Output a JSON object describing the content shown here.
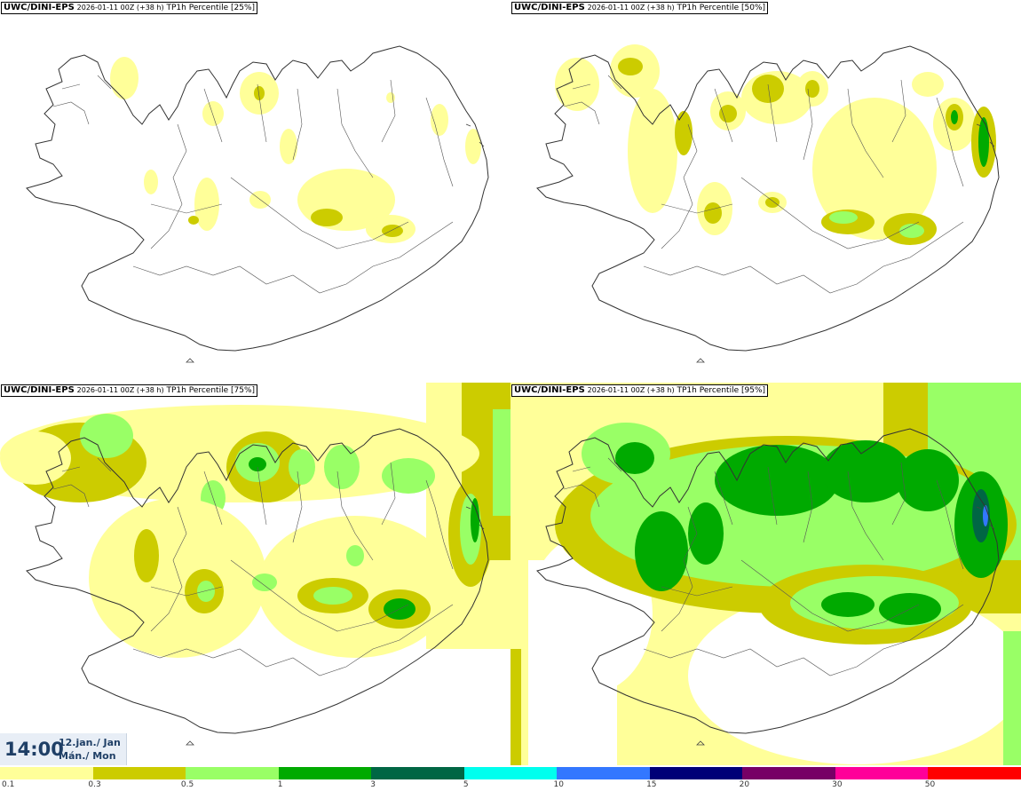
{
  "panels": [
    {
      "id": "p25",
      "source": "UWC/DINI-EPS",
      "run": "2026-01-11 00Z (+38 h)",
      "product": "TP1h Percentile [25%]"
    },
    {
      "id": "p50",
      "source": "UWC/DINI-EPS",
      "run": "2026-01-11 00Z (+38 h)",
      "product": "TP1h Percentile [50%]"
    },
    {
      "id": "p75",
      "source": "UWC/DINI-EPS",
      "run": "2026-01-11 00Z (+38 h)",
      "product": "TP1h Percentile [75%]"
    },
    {
      "id": "p95",
      "source": "UWC/DINI-EPS",
      "run": "2026-01-11 00Z (+38 h)",
      "product": "TP1h Percentile [95%]"
    }
  ],
  "valid_time": {
    "hour": "14:00",
    "date": "12.jan./ Jan",
    "weekday": "Mán./ Mon"
  },
  "colorbar": {
    "labels": [
      "0.1",
      "0.3",
      "0.5",
      "1",
      "3",
      "5",
      "10",
      "15",
      "20",
      "30",
      "50"
    ],
    "colors": [
      "#ffff99",
      "#cccc00",
      "#99ff66",
      "#00aa00",
      "#006644",
      "#00ffee",
      "#3377ff",
      "#000077",
      "#770066",
      "#ff0099",
      "#ff0000"
    ]
  }
}
